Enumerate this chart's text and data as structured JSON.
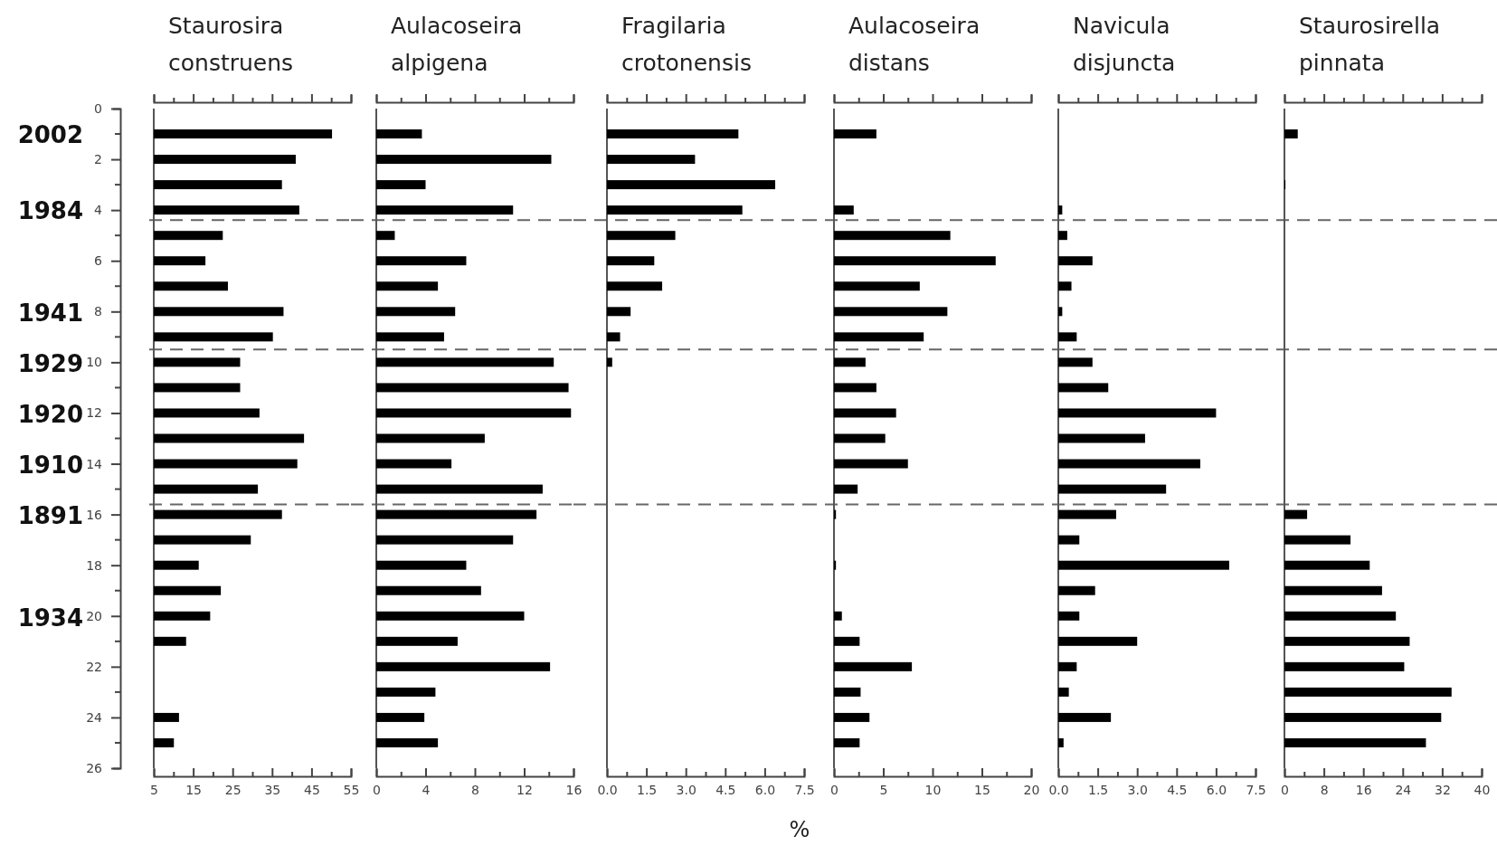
{
  "chart_data": [
    {
      "type": "bar",
      "orientation": "horizontal",
      "title": "Staurosira construens",
      "color": "#000000",
      "x": [
        1,
        2,
        3,
        4,
        5,
        6,
        7,
        8,
        9,
        10,
        11,
        12,
        13,
        14,
        15,
        16,
        17,
        18,
        19,
        20,
        21,
        24,
        25
      ],
      "values": [
        50.2,
        41,
        37.5,
        41.9,
        22.5,
        18.1,
        23.8,
        37.9,
        35.2,
        26.9,
        26.9,
        31.8,
        43.1,
        41.4,
        31.4,
        37.5,
        29.6,
        16.4,
        22,
        19.3,
        13.2,
        11.4,
        10.1
      ],
      "xlim": [
        5,
        55
      ],
      "xticks": [
        5,
        {
          "value": 10,
          "label": null
        },
        15,
        {
          "value": 20,
          "label": null
        },
        25,
        {
          "value": 30,
          "label": null
        },
        35,
        {
          "value": 40,
          "label": null
        },
        45,
        {
          "value": 50,
          "label": null
        },
        55
      ],
      "ylim": [
        26,
        0
      ],
      "yticks": [
        0,
        2,
        4,
        6,
        8,
        10,
        12,
        14,
        16,
        18,
        20,
        22,
        24,
        26
      ],
      "annotations": [
        "2002",
        "1984",
        "1941",
        "1929",
        "1920",
        "1910",
        "1891",
        "1934"
      ],
      "ref_lines": [
        {
          "axis": "y",
          "value": 4.4,
          "color": "#666666",
          "line_style": "dashed"
        },
        {
          "axis": "y",
          "value": 9.5,
          "color": "#666666",
          "line_style": "dashed"
        },
        {
          "axis": "y",
          "value": 15.6,
          "color": "#666666",
          "line_style": "dashed"
        }
      ]
    },
    {
      "type": "bar",
      "orientation": "horizontal",
      "title": "Aulacoseira alpigena",
      "color": "#000000",
      "x": [
        1,
        2,
        3,
        4,
        5,
        6,
        7,
        8,
        9,
        10,
        11,
        12,
        13,
        14,
        15,
        16,
        17,
        18,
        19,
        20,
        21,
        22,
        23,
        24,
        25
      ],
      "values": [
        3.7,
        14.2,
        4,
        11.1,
        1.5,
        7.3,
        5,
        6.4,
        5.5,
        14.4,
        15.6,
        15.8,
        8.8,
        6.1,
        13.5,
        13,
        11.1,
        7.3,
        8.5,
        12,
        6.6,
        14.1,
        4.8,
        3.9,
        5
      ],
      "xlim": [
        0,
        16
      ],
      "xticks": [
        0,
        {
          "value": 2,
          "label": null
        },
        4,
        {
          "value": 6,
          "label": null
        },
        8,
        {
          "value": 10,
          "label": null
        },
        12,
        {
          "value": 14,
          "label": null
        },
        16
      ],
      "ylim": [
        26,
        0
      ],
      "tick_labels": "x",
      "ref_lines": [
        {
          "axis": "y",
          "value": 4.4,
          "color": "#666666",
          "line_style": "dashed"
        },
        {
          "axis": "y",
          "value": 9.5,
          "color": "#666666",
          "line_style": "dashed"
        },
        {
          "axis": "y",
          "value": 15.6,
          "color": "#666666",
          "line_style": "dashed"
        }
      ]
    },
    {
      "type": "bar",
      "orientation": "horizontal",
      "title": "Fragilaria crotonensis",
      "xlabel": "%",
      "color": "#000000",
      "x": [
        1,
        2,
        3,
        4,
        5,
        6,
        7,
        8,
        9,
        10
      ],
      "values": [
        5,
        3.35,
        6.4,
        5.15,
        2.6,
        1.8,
        2.1,
        0.9,
        0.5,
        0.2
      ],
      "xlim": [
        0,
        7.5
      ],
      "xticks": [
        {
          "value": 0,
          "label": "0.0"
        },
        {
          "value": 0.75,
          "label": null
        },
        {
          "value": 1.5,
          "label": "1.5"
        },
        {
          "value": 2.25,
          "label": null
        },
        {
          "value": 3,
          "label": "3.0"
        },
        {
          "value": 3.75,
          "label": null
        },
        {
          "value": 4.5,
          "label": "4.5"
        },
        {
          "value": 5.25,
          "label": null
        },
        {
          "value": 6,
          "label": "6.0"
        },
        {
          "value": 6.75,
          "label": null
        },
        {
          "value": 7.5,
          "label": "7.5"
        }
      ],
      "ylim": [
        26,
        0
      ],
      "tick_labels": "x",
      "ref_lines": [
        {
          "axis": "y",
          "value": 4.4,
          "color": "#666666",
          "line_style": "dashed"
        },
        {
          "axis": "y",
          "value": 9.5,
          "color": "#666666",
          "line_style": "dashed"
        },
        {
          "axis": "y",
          "value": 15.6,
          "color": "#666666",
          "line_style": "dashed"
        }
      ]
    },
    {
      "type": "bar",
      "orientation": "horizontal",
      "title": "Aulacoseira distans",
      "color": "#000000",
      "x": [
        1,
        4,
        5,
        6,
        7,
        8,
        9,
        10,
        11,
        12,
        13,
        14,
        15,
        16,
        18,
        20,
        21,
        22,
        23,
        24,
        25
      ],
      "values": [
        4.3,
        2,
        11.8,
        16.4,
        8.7,
        11.5,
        9.1,
        3.2,
        4.3,
        6.3,
        5.2,
        7.5,
        2.4,
        0.2,
        0.2,
        0.8,
        2.6,
        7.9,
        2.7,
        3.6,
        2.6
      ],
      "xlim": [
        0,
        20
      ],
      "xticks": [
        0,
        {
          "value": 2.5,
          "label": null
        },
        5,
        {
          "value": 7.5,
          "label": null
        },
        10,
        {
          "value": 12.5,
          "label": null
        },
        15,
        {
          "value": 17.5,
          "label": null
        },
        20
      ],
      "ylim": [
        26,
        0
      ],
      "tick_labels": "x",
      "ref_lines": [
        {
          "axis": "y",
          "value": 4.4,
          "color": "#666666",
          "line_style": "dashed"
        },
        {
          "axis": "y",
          "value": 9.5,
          "color": "#666666",
          "line_style": "dashed"
        },
        {
          "axis": "y",
          "value": 15.6,
          "color": "#666666",
          "line_style": "dashed"
        }
      ]
    },
    {
      "type": "bar",
      "orientation": "horizontal",
      "title": "Navicula disjuncta",
      "color": "#000000",
      "x": [
        4,
        5,
        6,
        7,
        8,
        9,
        10,
        11,
        12,
        13,
        14,
        15,
        16,
        17,
        18,
        19,
        20,
        21,
        22,
        23,
        24,
        25
      ],
      "values": [
        0.15,
        0.34,
        1.3,
        0.5,
        0.15,
        0.7,
        1.3,
        1.9,
        6,
        3.3,
        5.4,
        4.1,
        2.2,
        0.8,
        6.5,
        1.4,
        0.8,
        3,
        0.7,
        0.4,
        2,
        0.2
      ],
      "xlim": [
        0,
        7.5
      ],
      "xticks": [
        {
          "value": 0,
          "label": "0.0"
        },
        {
          "value": 0.75,
          "label": null
        },
        {
          "value": 1.5,
          "label": "1.5"
        },
        {
          "value": 2.25,
          "label": null
        },
        {
          "value": 3,
          "label": "3.0"
        },
        {
          "value": 3.75,
          "label": null
        },
        {
          "value": 4.5,
          "label": "4.5"
        },
        {
          "value": 5.25,
          "label": null
        },
        {
          "value": 6,
          "label": "6.0"
        },
        {
          "value": 6.75,
          "label": null
        },
        {
          "value": 7.5,
          "label": "7.5"
        }
      ],
      "ylim": [
        26,
        0
      ],
      "tick_labels": "x",
      "ref_lines": [
        {
          "axis": "y",
          "value": 4.4,
          "color": "#666666",
          "line_style": "dashed"
        },
        {
          "axis": "y",
          "value": 9.5,
          "color": "#666666",
          "line_style": "dashed"
        },
        {
          "axis": "y",
          "value": 15.6,
          "color": "#666666",
          "line_style": "dashed"
        }
      ]
    },
    {
      "type": "bar",
      "orientation": "horizontal",
      "title": "Staurosirella pinnata",
      "color": "#000000",
      "x": [
        1,
        3,
        16,
        17,
        18,
        19,
        20,
        21,
        22,
        23,
        24,
        25
      ],
      "values": [
        2.7,
        0.2,
        4.6,
        13.4,
        17.3,
        19.8,
        22.6,
        25.4,
        24.3,
        33.9,
        31.8,
        28.7
      ],
      "xlim": [
        0,
        40
      ],
      "xticks": [
        0,
        {
          "value": 4,
          "label": null
        },
        8,
        {
          "value": 12,
          "label": null
        },
        16,
        {
          "value": 20,
          "label": null
        },
        24,
        {
          "value": 28,
          "label": null
        },
        32,
        {
          "value": 36,
          "label": null
        },
        40
      ],
      "ylim": [
        26,
        0
      ],
      "tick_labels": "x",
      "ref_lines": [
        {
          "axis": "y",
          "value": 4.4,
          "color": "#666666",
          "line_style": "dashed"
        },
        {
          "axis": "y",
          "value": 9.5,
          "color": "#666666",
          "line_style": "dashed"
        },
        {
          "axis": "y",
          "value": 15.6,
          "color": "#666666",
          "line_style": "dashed"
        }
      ]
    }
  ]
}
